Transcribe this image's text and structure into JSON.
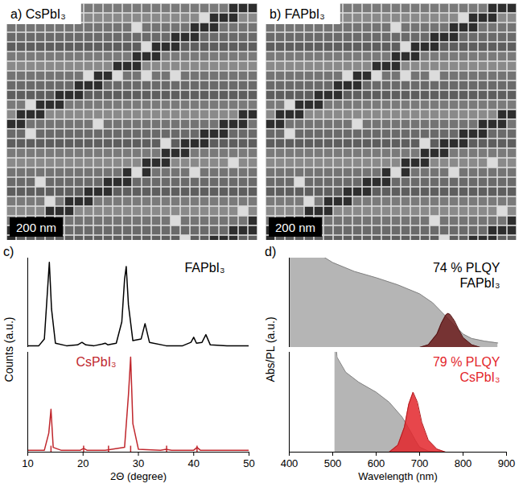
{
  "images": [
    {
      "label": "a) CsPbI₃",
      "scale_bar": "200 nm"
    },
    {
      "label": "b) FAPbI₃",
      "scale_bar": "200 nm"
    }
  ],
  "chart_data": [
    {
      "type": "line",
      "panel_label": "c)",
      "x_label": "2Θ (degree)",
      "y_label": "Counts (a.u.)",
      "xlim": [
        10,
        50
      ],
      "xticks": [
        10,
        20,
        30,
        40,
        50
      ],
      "ylim": [
        0,
        1.05
      ],
      "tick_labels": "x",
      "grid": false,
      "strips": [
        {
          "label": "FAPbI₃",
          "label_color": "#000000",
          "series": [
            {
              "type": "line",
              "color": "#000000",
              "x": [
                10,
                12,
                13,
                13.5,
                13.9,
                14.3,
                15,
                17,
                19,
                19.8,
                20.5,
                22,
                23.5,
                24,
                24.5,
                26,
                27,
                27.5,
                27.8,
                28.2,
                29,
                30.5,
                31.2,
                32,
                35,
                38,
                39.5,
                40,
                40.5,
                41.5,
                42.2,
                43,
                46,
                50
              ],
              "values": [
                0.02,
                0.02,
                0.1,
                0.6,
                1.0,
                0.45,
                0.05,
                0.02,
                0.03,
                0.06,
                0.03,
                0.02,
                0.04,
                0.05,
                0.03,
                0.05,
                0.3,
                0.8,
                0.95,
                0.5,
                0.08,
                0.1,
                0.28,
                0.06,
                0.02,
                0.02,
                0.06,
                0.12,
                0.05,
                0.06,
                0.15,
                0.03,
                0.02,
                0.02
              ]
            }
          ]
        },
        {
          "label": "CsPbI₃",
          "label_color": "#c0272d",
          "reference_peaks": [
            14.2,
            20.1,
            24.6,
            28.6,
            35.1,
            40.6
          ],
          "series": [
            {
              "type": "line",
              "color": "#c0272d",
              "x": [
                10,
                13,
                13.8,
                14.2,
                14.6,
                16,
                19.5,
                20.1,
                20.7,
                24,
                27.5,
                28.2,
                28.6,
                29,
                30,
                34,
                35,
                36,
                40,
                40.6,
                41.2,
                45,
                50
              ],
              "values": [
                0.02,
                0.02,
                0.2,
                0.45,
                0.05,
                0.02,
                0.02,
                0.04,
                0.02,
                0.02,
                0.05,
                0.6,
                1.0,
                0.3,
                0.03,
                0.02,
                0.03,
                0.02,
                0.02,
                0.05,
                0.02,
                0.02,
                0.02
              ]
            }
          ]
        }
      ]
    },
    {
      "type": "area",
      "panel_label": "d)",
      "x_label": "Wavelength (nm)",
      "y_label": "Abs/PL (a.u.)",
      "xlim": [
        400,
        900
      ],
      "xticks": [
        400,
        500,
        600,
        700,
        800,
        900
      ],
      "ylim": [
        0,
        1
      ],
      "tick_labels": "x",
      "grid": false,
      "strips": [
        {
          "label": "FAPbI₃",
          "annotation": "74 % PLQY",
          "label_color": "#000000",
          "series": [
            {
              "type": "area",
              "color": "#a8a8a8",
              "x": [
                400,
                450,
                500,
                550,
                600,
                650,
                700,
                730,
                750,
                770,
                790,
                800,
                820,
                850,
                880
              ],
              "values": [
                1.35,
                1.1,
                0.95,
                0.85,
                0.78,
                0.7,
                0.6,
                0.5,
                0.4,
                0.3,
                0.2,
                0.15,
                0.1,
                0.07,
                0.05
              ]
            },
            {
              "type": "area",
              "color": "#6b1c1c",
              "x": [
                700,
                720,
                740,
                750,
                760,
                765,
                770,
                780,
                790,
                800,
                820,
                840
              ],
              "values": [
                0,
                0.03,
                0.15,
                0.27,
                0.36,
                0.38,
                0.37,
                0.3,
                0.2,
                0.11,
                0.03,
                0
              ]
            }
          ]
        },
        {
          "label": "CsPbI₃",
          "annotation": "79 % PLQY",
          "label_color": "#e3262b",
          "series": [
            {
              "type": "area",
              "color": "#a8a8a8",
              "x": [
                505,
                510,
                530,
                560,
                600,
                630,
                660,
                680,
                690,
                700,
                720,
                750
              ],
              "values": [
                1.2,
                0.95,
                0.8,
                0.7,
                0.6,
                0.5,
                0.35,
                0.2,
                0.12,
                0.05,
                0.01,
                0
              ]
            },
            {
              "type": "area",
              "color": "#e3262b",
              "x": [
                630,
                650,
                665,
                675,
                685,
                695,
                705,
                720,
                740,
                760
              ],
              "values": [
                0,
                0.07,
                0.25,
                0.48,
                0.6,
                0.5,
                0.3,
                0.12,
                0.03,
                0
              ]
            }
          ]
        }
      ]
    }
  ]
}
